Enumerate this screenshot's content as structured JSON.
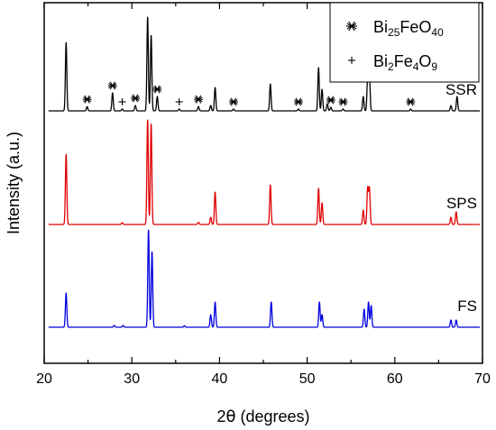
{
  "chart_data": {
    "type": "line",
    "xlabel": {
      "prefix": "2",
      "symbol": "θ",
      "suffix": " (degrees)"
    },
    "ylabel": "Intensity (a.u.)",
    "xlim": [
      20,
      70
    ],
    "xticks": [
      "20",
      "30",
      "40",
      "50",
      "60",
      "70"
    ],
    "ylim": [
      0,
      100
    ],
    "grid": false,
    "legend": {
      "position": "top-right",
      "entries": [
        {
          "marker": "*",
          "name_parts": [
            [
              "Bi",
              ""
            ],
            [
              "25",
              "sub"
            ],
            [
              "FeO",
              ""
            ],
            [
              "40",
              "sub"
            ]
          ]
        },
        {
          "marker": "+",
          "name_parts": [
            [
              "Bi",
              ""
            ],
            [
              "2",
              "sub"
            ],
            [
              "Fe",
              ""
            ],
            [
              "4",
              "sub"
            ],
            [
              "O",
              ""
            ],
            [
              "9",
              "sub"
            ]
          ]
        }
      ]
    },
    "series": [
      {
        "name": "SSR",
        "color": "#000000",
        "baseline": 70,
        "peaks": [
          [
            22.5,
            19
          ],
          [
            24.9,
            1.2
          ],
          [
            27.8,
            5
          ],
          [
            28.9,
            0.5
          ],
          [
            30.4,
            1.5
          ],
          [
            31.8,
            26
          ],
          [
            32.2,
            21
          ],
          [
            32.9,
            4
          ],
          [
            35.4,
            0.5
          ],
          [
            37.6,
            1.2
          ],
          [
            39.0,
            1.5
          ],
          [
            39.5,
            6.5
          ],
          [
            41.6,
            0.5
          ],
          [
            45.8,
            7.5
          ],
          [
            49.0,
            0.5
          ],
          [
            51.3,
            12
          ],
          [
            51.7,
            6
          ],
          [
            52.3,
            2
          ],
          [
            52.7,
            1
          ],
          [
            54.1,
            0.5
          ],
          [
            56.4,
            4
          ],
          [
            56.9,
            9
          ],
          [
            57.1,
            10
          ],
          [
            61.8,
            0.5
          ],
          [
            66.4,
            1.5
          ],
          [
            67.1,
            4
          ]
        ],
        "markers": [
          {
            "x": 24.9,
            "type": "*"
          },
          {
            "x": 27.8,
            "type": "*"
          },
          {
            "x": 28.9,
            "type": "+"
          },
          {
            "x": 30.4,
            "type": "*"
          },
          {
            "x": 32.9,
            "type": "*"
          },
          {
            "x": 35.4,
            "type": "+"
          },
          {
            "x": 37.6,
            "type": "*"
          },
          {
            "x": 41.6,
            "type": "*"
          },
          {
            "x": 49.0,
            "type": "*"
          },
          {
            "x": 52.7,
            "type": "*"
          },
          {
            "x": 54.1,
            "type": "*"
          },
          {
            "x": 61.8,
            "type": "*"
          }
        ]
      },
      {
        "name": "SPS",
        "color": "#e00000",
        "baseline": 38.5,
        "peaks": [
          [
            22.5,
            19.5
          ],
          [
            28.9,
            0.5
          ],
          [
            31.8,
            29
          ],
          [
            32.2,
            28
          ],
          [
            37.6,
            0.6
          ],
          [
            39.0,
            2
          ],
          [
            39.5,
            9
          ],
          [
            45.8,
            11
          ],
          [
            51.3,
            10
          ],
          [
            51.7,
            6
          ],
          [
            56.4,
            4
          ],
          [
            56.9,
            10
          ],
          [
            57.1,
            10
          ],
          [
            66.4,
            2
          ],
          [
            67.0,
            3.5
          ]
        ],
        "markers": []
      },
      {
        "name": "FS",
        "color": "#0000e0",
        "baseline": 10,
        "peaks": [
          [
            22.5,
            9.5
          ],
          [
            28.0,
            0.5
          ],
          [
            29.0,
            0.5
          ],
          [
            31.9,
            27
          ],
          [
            32.3,
            21
          ],
          [
            36.0,
            0.4
          ],
          [
            39.0,
            3.5
          ],
          [
            39.5,
            7
          ],
          [
            45.9,
            7
          ],
          [
            51.4,
            7
          ],
          [
            51.7,
            3.5
          ],
          [
            56.5,
            5
          ],
          [
            57.0,
            7
          ],
          [
            57.3,
            6
          ],
          [
            66.4,
            2
          ],
          [
            67.0,
            2
          ]
        ],
        "markers": []
      }
    ]
  }
}
